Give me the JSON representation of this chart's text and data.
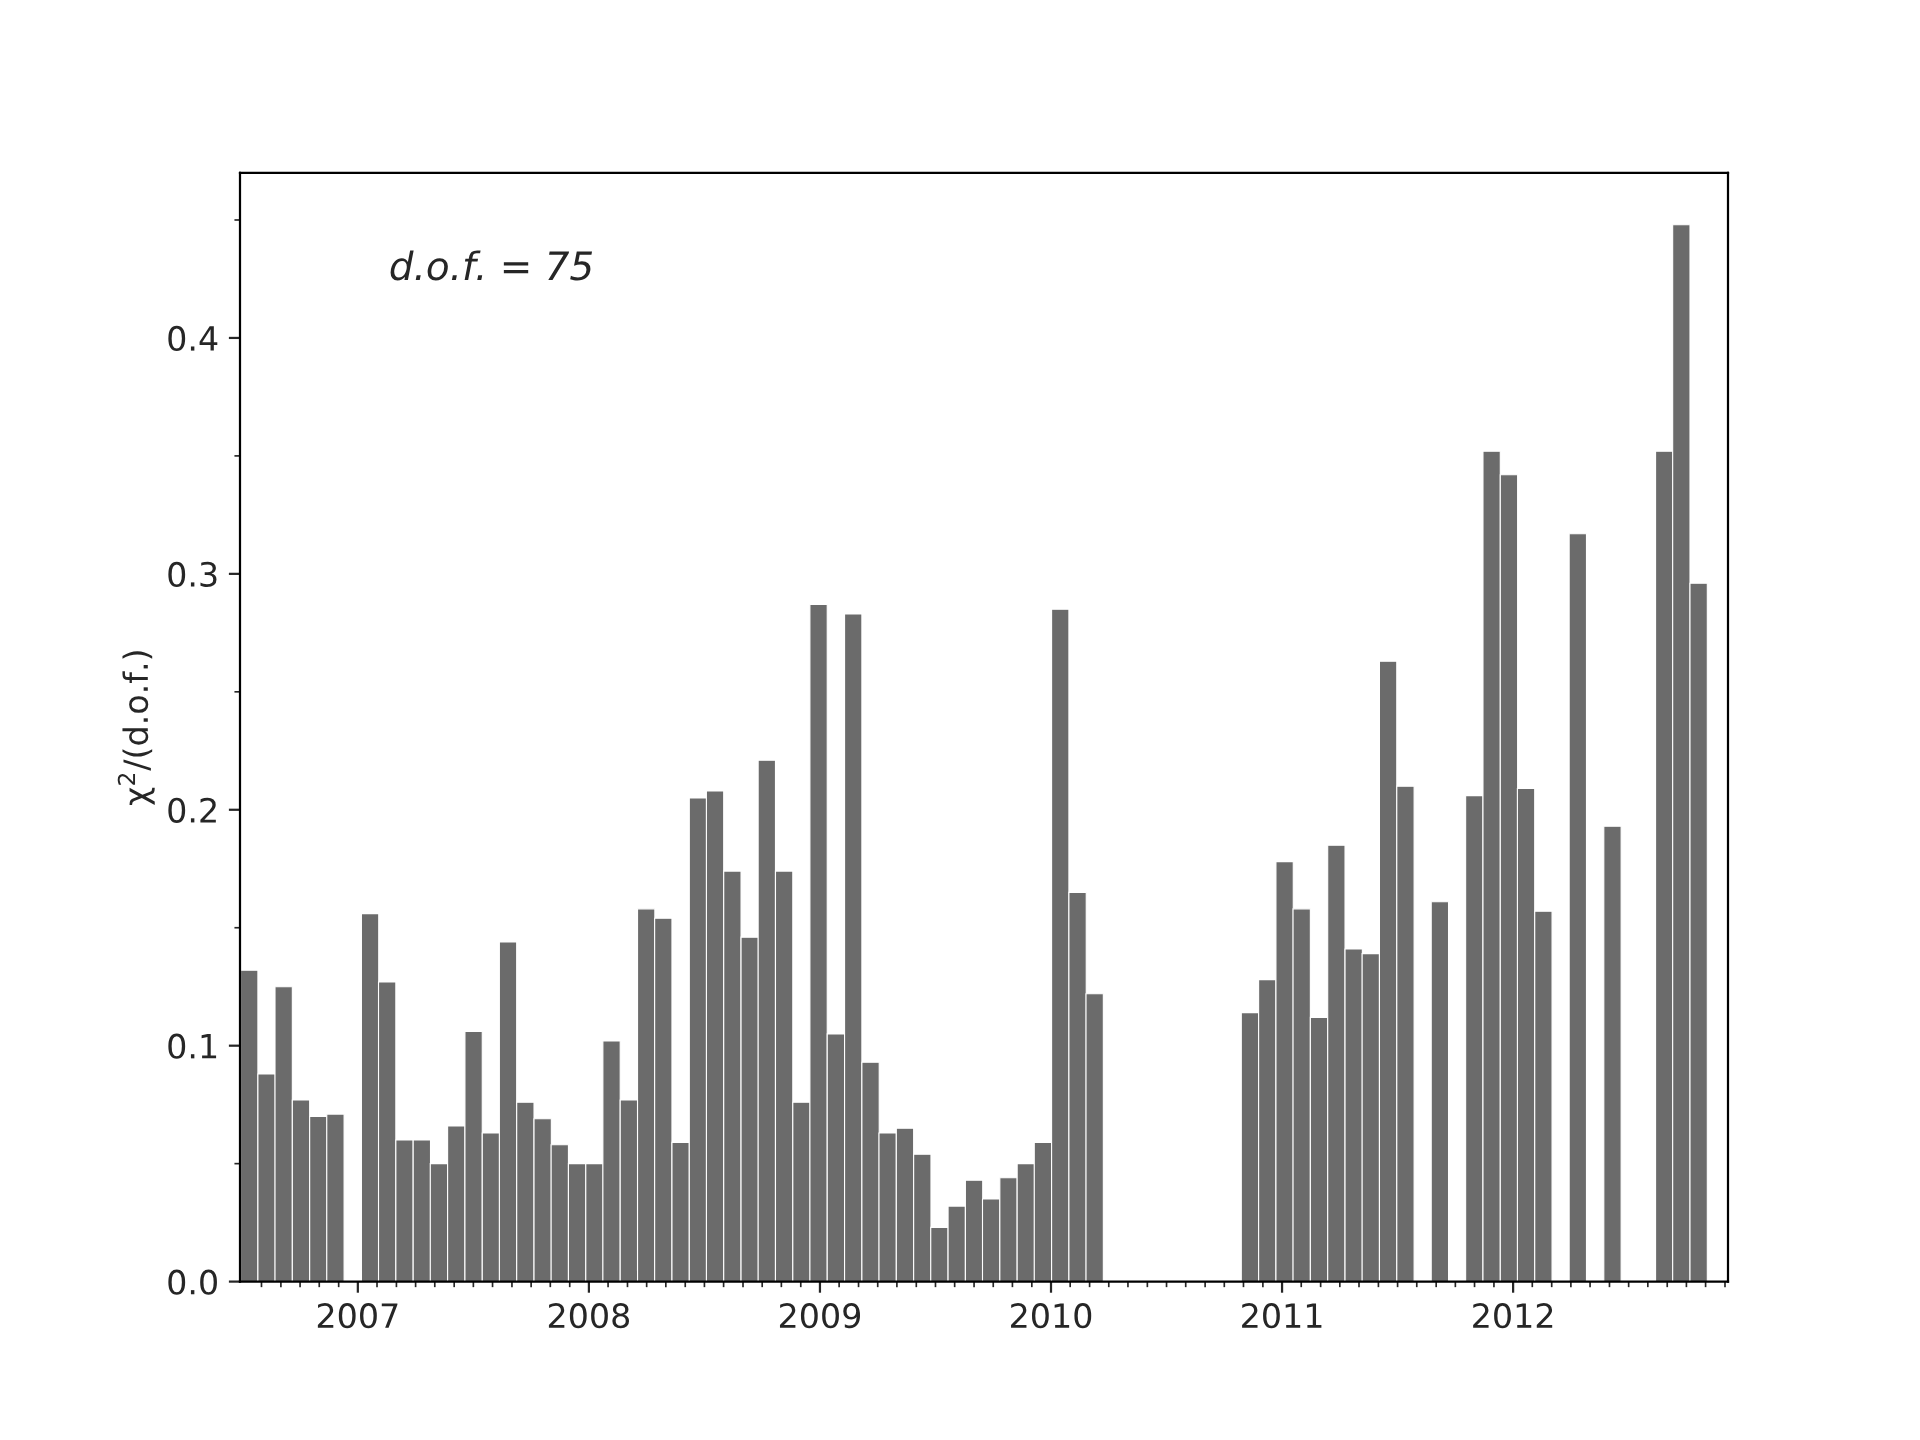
{
  "chart_data": {
    "type": "bar",
    "ylabel": "χ$^{2}$/(d.o.f.)",
    "annotations": [
      "d.o.f. = 75"
    ],
    "x": [
      2006.53,
      2006.605,
      2006.679,
      2006.754,
      2006.829,
      2006.903,
      2006.978,
      2007.053,
      2007.127,
      2007.202,
      2007.277,
      2007.351,
      2007.426,
      2007.501,
      2007.576,
      2007.65,
      2007.725,
      2007.8,
      2007.874,
      2007.949,
      2008.024,
      2008.098,
      2008.173,
      2008.248,
      2008.322,
      2008.397,
      2008.472,
      2008.546,
      2008.621,
      2008.696,
      2008.77,
      2008.845,
      2008.92,
      2008.994,
      2009.069,
      2009.144,
      2009.219,
      2009.293,
      2009.368,
      2009.443,
      2009.517,
      2009.592,
      2009.667,
      2009.741,
      2009.816,
      2009.891,
      2009.965,
      2010.04,
      2010.115,
      2010.189,
      2010.264,
      2010.339,
      2010.413,
      2010.488,
      2010.563,
      2010.637,
      2010.712,
      2010.787,
      2010.861,
      2010.936,
      2011.011,
      2011.085,
      2011.16,
      2011.235,
      2011.31,
      2011.384,
      2011.459,
      2011.534,
      2011.608,
      2011.683,
      2011.758,
      2011.832,
      2011.907,
      2011.982,
      2012.056,
      2012.131,
      2012.206,
      2012.28,
      2012.355,
      2012.43,
      2012.504,
      2012.579,
      2012.654,
      2012.728,
      2012.803
    ],
    "series": [
      {
        "color": "#6b6b6b",
        "values": [
          0.132,
          0.088,
          0.125,
          0.077,
          0.07,
          0.071,
          null,
          0.156,
          0.127,
          0.06,
          0.06,
          0.05,
          0.066,
          0.106,
          0.063,
          0.144,
          0.076,
          0.069,
          0.058,
          0.05,
          0.05,
          0.102,
          0.077,
          0.158,
          0.154,
          0.059,
          0.205,
          0.208,
          0.174,
          0.146,
          0.221,
          0.174,
          0.076,
          0.287,
          0.105,
          0.283,
          0.093,
          0.063,
          0.065,
          0.054,
          0.023,
          0.032,
          0.043,
          0.035,
          0.044,
          0.05,
          0.059,
          0.285,
          0.165,
          0.122,
          null,
          null,
          null,
          null,
          null,
          null,
          null,
          null,
          0.114,
          0.128,
          0.178,
          0.158,
          0.112,
          0.185,
          0.141,
          0.139,
          0.263,
          0.21,
          null,
          0.161,
          null,
          0.206,
          0.352,
          0.342,
          0.209,
          0.157,
          null,
          0.317,
          null,
          0.193,
          null,
          null,
          0.352,
          0.448,
          0.296
        ]
      }
    ],
    "xlim": [
      2006.49,
      2012.93
    ],
    "xticks": [
      {
        "value": 2006.583,
        "label": null
      },
      {
        "value": 2006.667,
        "label": null
      },
      {
        "value": 2006.75,
        "label": null
      },
      {
        "value": 2006.833,
        "label": null
      },
      {
        "value": 2006.917,
        "label": null
      },
      {
        "value": 2007,
        "label": "2007"
      },
      {
        "value": 2007.083,
        "label": null
      },
      {
        "value": 2007.167,
        "label": null
      },
      {
        "value": 2007.25,
        "label": null
      },
      {
        "value": 2007.333,
        "label": null
      },
      {
        "value": 2007.417,
        "label": null
      },
      {
        "value": 2007.5,
        "label": null
      },
      {
        "value": 2007.583,
        "label": null
      },
      {
        "value": 2007.667,
        "label": null
      },
      {
        "value": 2007.75,
        "label": null
      },
      {
        "value": 2007.833,
        "label": null
      },
      {
        "value": 2007.917,
        "label": null
      },
      {
        "value": 2008,
        "label": "2008"
      },
      {
        "value": 2008.083,
        "label": null
      },
      {
        "value": 2008.167,
        "label": null
      },
      {
        "value": 2008.25,
        "label": null
      },
      {
        "value": 2008.333,
        "label": null
      },
      {
        "value": 2008.417,
        "label": null
      },
      {
        "value": 2008.5,
        "label": null
      },
      {
        "value": 2008.583,
        "label": null
      },
      {
        "value": 2008.667,
        "label": null
      },
      {
        "value": 2008.75,
        "label": null
      },
      {
        "value": 2008.833,
        "label": null
      },
      {
        "value": 2008.917,
        "label": null
      },
      {
        "value": 2009,
        "label": "2009"
      },
      {
        "value": 2009.083,
        "label": null
      },
      {
        "value": 2009.167,
        "label": null
      },
      {
        "value": 2009.25,
        "label": null
      },
      {
        "value": 2009.333,
        "label": null
      },
      {
        "value": 2009.417,
        "label": null
      },
      {
        "value": 2009.5,
        "label": null
      },
      {
        "value": 2009.583,
        "label": null
      },
      {
        "value": 2009.667,
        "label": null
      },
      {
        "value": 2009.75,
        "label": null
      },
      {
        "value": 2009.833,
        "label": null
      },
      {
        "value": 2009.917,
        "label": null
      },
      {
        "value": 2010,
        "label": "2010"
      },
      {
        "value": 2010.083,
        "label": null
      },
      {
        "value": 2010.167,
        "label": null
      },
      {
        "value": 2010.25,
        "label": null
      },
      {
        "value": 2010.333,
        "label": null
      },
      {
        "value": 2010.417,
        "label": null
      },
      {
        "value": 2010.5,
        "label": null
      },
      {
        "value": 2010.583,
        "label": null
      },
      {
        "value": 2010.667,
        "label": null
      },
      {
        "value": 2010.75,
        "label": null
      },
      {
        "value": 2010.833,
        "label": null
      },
      {
        "value": 2010.917,
        "label": null
      },
      {
        "value": 2011,
        "label": "2011"
      },
      {
        "value": 2011.083,
        "label": null
      },
      {
        "value": 2011.167,
        "label": null
      },
      {
        "value": 2011.25,
        "label": null
      },
      {
        "value": 2011.333,
        "label": null
      },
      {
        "value": 2011.417,
        "label": null
      },
      {
        "value": 2011.5,
        "label": null
      },
      {
        "value": 2011.583,
        "label": null
      },
      {
        "value": 2011.667,
        "label": null
      },
      {
        "value": 2011.75,
        "label": null
      },
      {
        "value": 2011.833,
        "label": null
      },
      {
        "value": 2011.917,
        "label": null
      },
      {
        "value": 2012,
        "label": "2012"
      },
      {
        "value": 2012.083,
        "label": null
      },
      {
        "value": 2012.167,
        "label": null
      },
      {
        "value": 2012.25,
        "label": null
      },
      {
        "value": 2012.333,
        "label": null
      },
      {
        "value": 2012.417,
        "label": null
      },
      {
        "value": 2012.5,
        "label": null
      },
      {
        "value": 2012.583,
        "label": null
      },
      {
        "value": 2012.667,
        "label": null
      },
      {
        "value": 2012.75,
        "label": null
      },
      {
        "value": 2012.833,
        "label": null
      },
      {
        "value": 2012.917,
        "label": null
      }
    ],
    "ylim": [
      0,
      0.47
    ],
    "yticks": [
      {
        "value": 0,
        "label": "0.0"
      },
      {
        "value": 0.05,
        "label": null
      },
      {
        "value": 0.1,
        "label": "0.1"
      },
      {
        "value": 0.15,
        "label": null
      },
      {
        "value": 0.2,
        "label": "0.2"
      },
      {
        "value": 0.25,
        "label": null
      },
      {
        "value": 0.3,
        "label": "0.3"
      },
      {
        "value": 0.35,
        "label": null
      },
      {
        "value": 0.4,
        "label": "0.4"
      },
      {
        "value": 0.45,
        "label": null
      }
    ],
    "grid": false,
    "legend": false
  }
}
